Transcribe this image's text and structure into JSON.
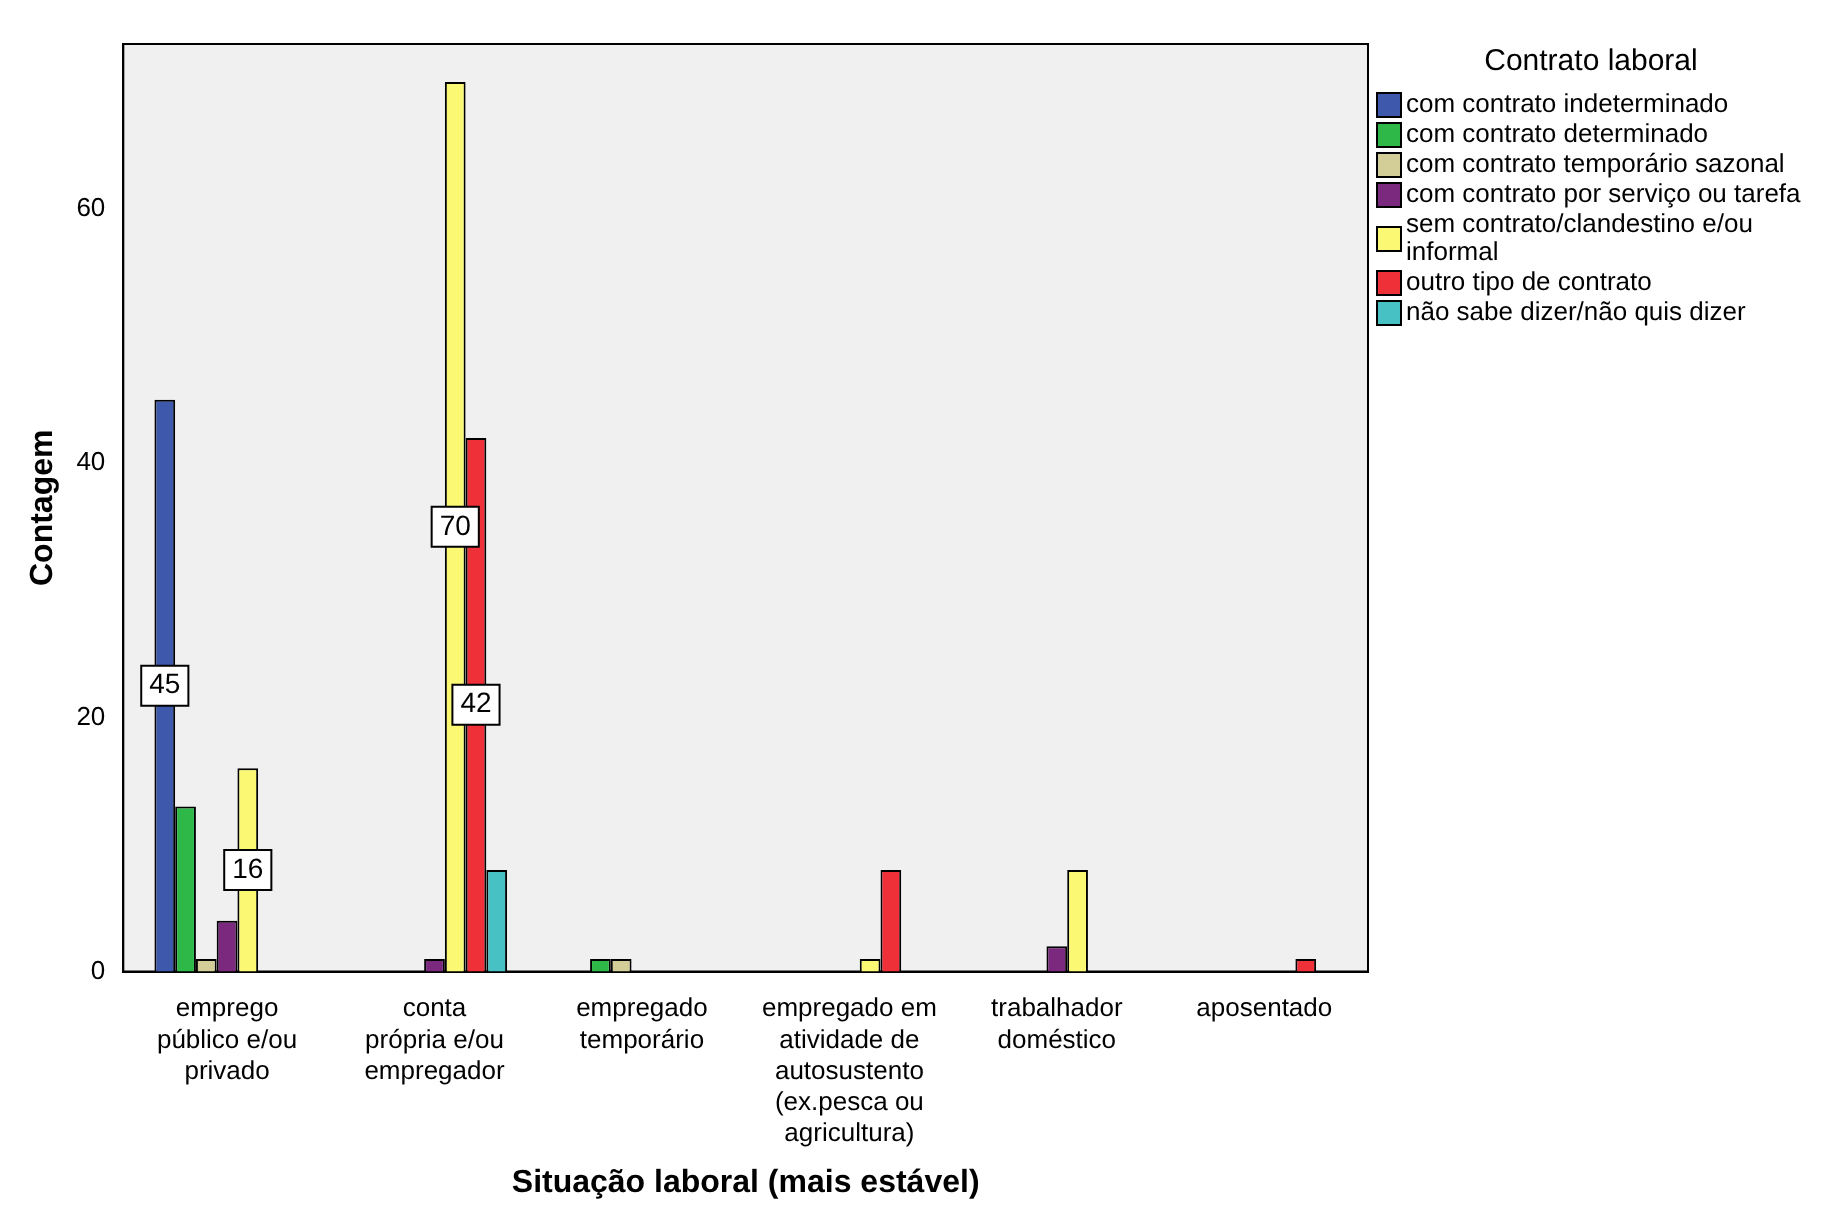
{
  "chart_data": {
    "type": "bar",
    "xlabel": "Situação laboral (mais estável)",
    "ylabel": "Contagem",
    "legend_title": "Contrato laboral",
    "legend": "right",
    "ylim": [
      0,
      73
    ],
    "yticks": [
      0,
      20,
      40,
      60
    ],
    "categories": [
      "emprego público e/ou privado",
      "conta própria e/ou empregador",
      "empregado temporário",
      "empregado em atividade de autosustento (ex.pesca ou agricultura)",
      "trabalhador doméstico",
      "aposentado"
    ],
    "series": [
      {
        "name": "com contrato indeterminado",
        "color": "#3e58ac",
        "values": [
          45,
          null,
          null,
          null,
          null,
          null
        ],
        "value_labels": [
          "45",
          null,
          null,
          null,
          null,
          null
        ]
      },
      {
        "name": "com contrato determinado",
        "color": "#2eb848",
        "values": [
          13,
          null,
          1,
          null,
          null,
          null
        ]
      },
      {
        "name": "com contrato temporário sazonal",
        "color": "#d3ce97",
        "values": [
          1,
          null,
          1,
          null,
          null,
          null
        ]
      },
      {
        "name": "com contrato por serviço ou tarefa",
        "color": "#7b287f",
        "values": [
          4,
          1,
          null,
          null,
          2,
          null
        ]
      },
      {
        "name": "sem contrato/clandestino e/ou informal",
        "color": "#fbf873",
        "values": [
          16,
          70,
          null,
          1,
          8,
          null
        ],
        "value_labels": [
          "16",
          "70",
          null,
          null,
          null,
          null
        ]
      },
      {
        "name": "outro tipo de contrato",
        "color": "#ef3038",
        "values": [
          null,
          42,
          null,
          8,
          null,
          1
        ],
        "value_labels": [
          null,
          "42",
          null,
          null,
          null,
          null
        ]
      },
      {
        "name": "não sabe dizer/não quis dizer",
        "color": "#48c1c5",
        "values": [
          null,
          8,
          null,
          null,
          null,
          null
        ]
      }
    ]
  }
}
